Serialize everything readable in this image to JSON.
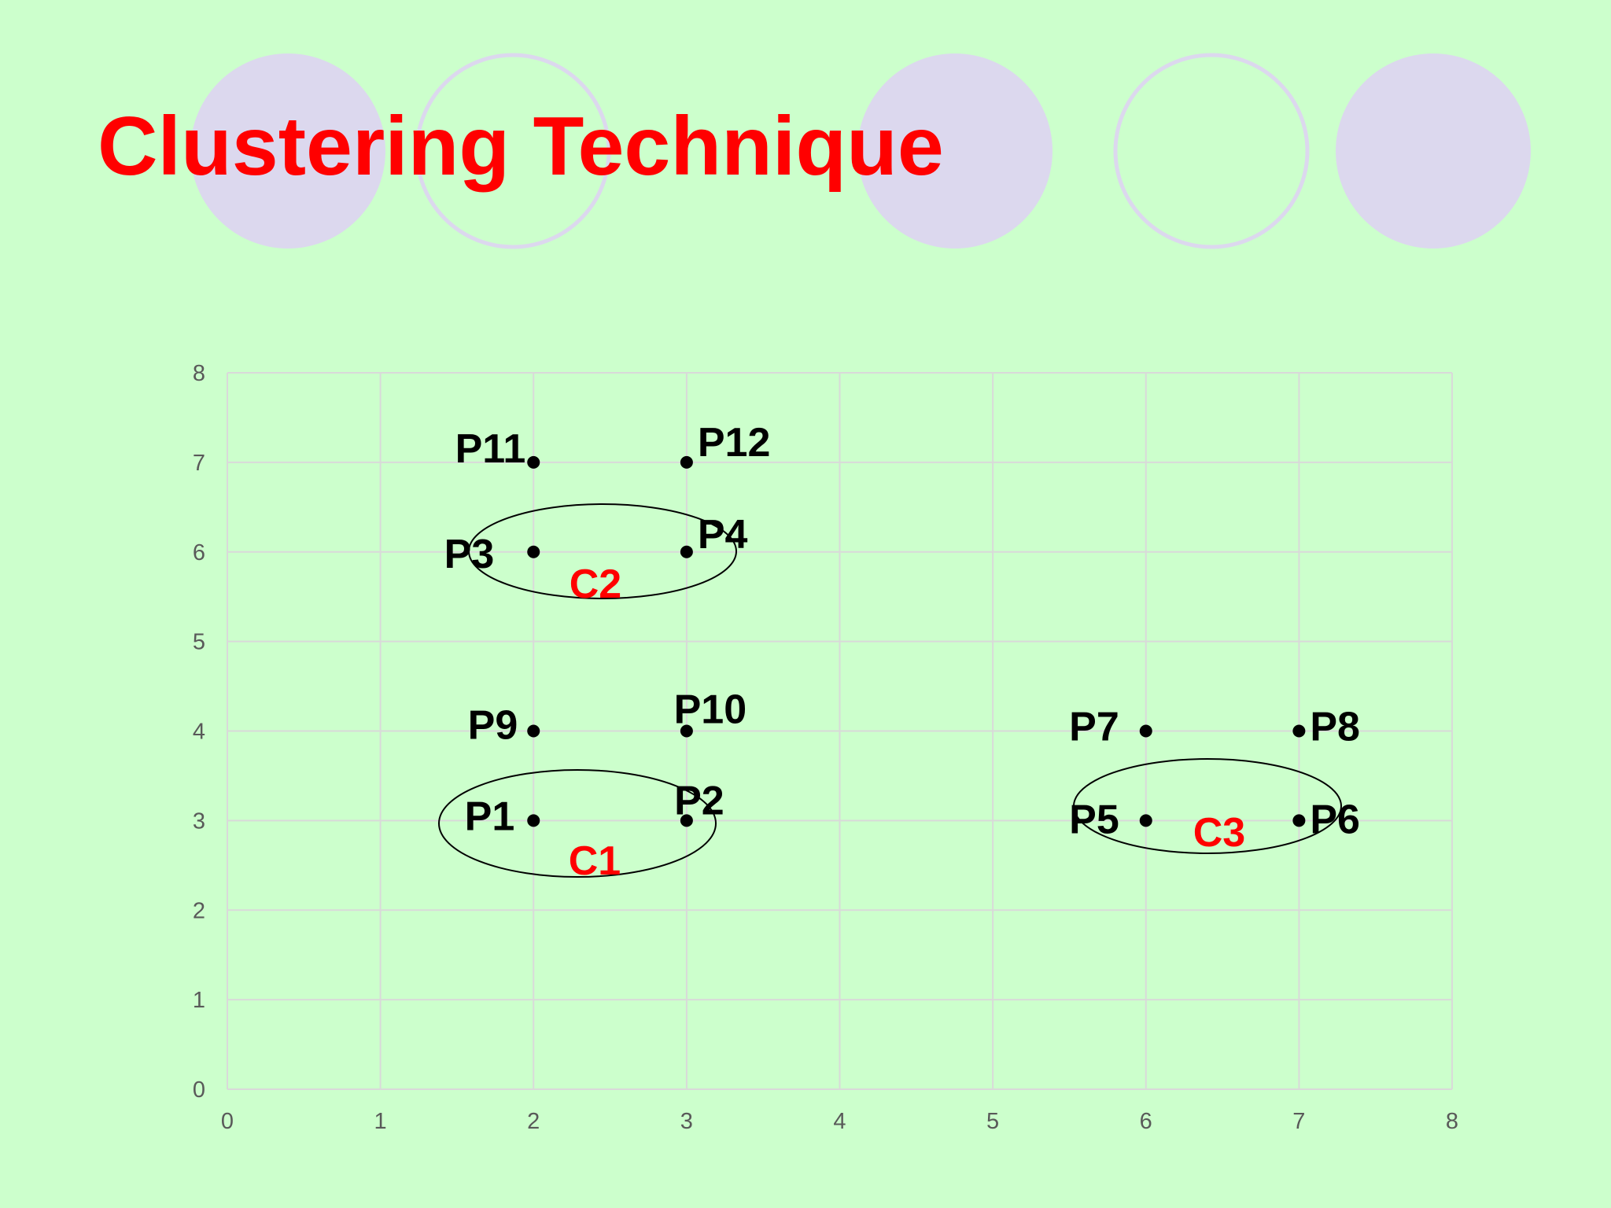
{
  "slide": {
    "title": "Clustering Technique"
  },
  "colors": {
    "background": "#ccffcc",
    "title": "#ff0000",
    "decor_circle_fill": "#dcd8ee",
    "decor_circle_ring": "#dcd8ee",
    "gridline": "#d9d9d9",
    "cluster_label": "#ff0000"
  },
  "chart_data": {
    "type": "scatter",
    "title": "",
    "xlabel": "",
    "ylabel": "",
    "xlim": [
      0,
      8
    ],
    "ylim": [
      0,
      8
    ],
    "x_ticks": [
      "0",
      "1",
      "2",
      "3",
      "4",
      "5",
      "6",
      "7",
      "8"
    ],
    "y_ticks": [
      "0",
      "1",
      "2",
      "3",
      "4",
      "5",
      "6",
      "7",
      "8"
    ],
    "grid": true,
    "legend": "none",
    "points": [
      {
        "label": "P1",
        "x": 2,
        "y": 3
      },
      {
        "label": "P2",
        "x": 3,
        "y": 3
      },
      {
        "label": "P3",
        "x": 2,
        "y": 6
      },
      {
        "label": "P4",
        "x": 3,
        "y": 6
      },
      {
        "label": "P5",
        "x": 6,
        "y": 3
      },
      {
        "label": "P6",
        "x": 7,
        "y": 3
      },
      {
        "label": "P7",
        "x": 6,
        "y": 4
      },
      {
        "label": "P8",
        "x": 7,
        "y": 4
      },
      {
        "label": "P9",
        "x": 2,
        "y": 4
      },
      {
        "label": "P10",
        "x": 3,
        "y": 4
      },
      {
        "label": "P11",
        "x": 2,
        "y": 7
      },
      {
        "label": "P12",
        "x": 3,
        "y": 7
      }
    ],
    "clusters": [
      {
        "label": "C1",
        "members": [
          "P1",
          "P2"
        ]
      },
      {
        "label": "C2",
        "members": [
          "P3",
          "P4"
        ]
      },
      {
        "label": "C3",
        "members": [
          "P5",
          "P6"
        ]
      }
    ]
  }
}
